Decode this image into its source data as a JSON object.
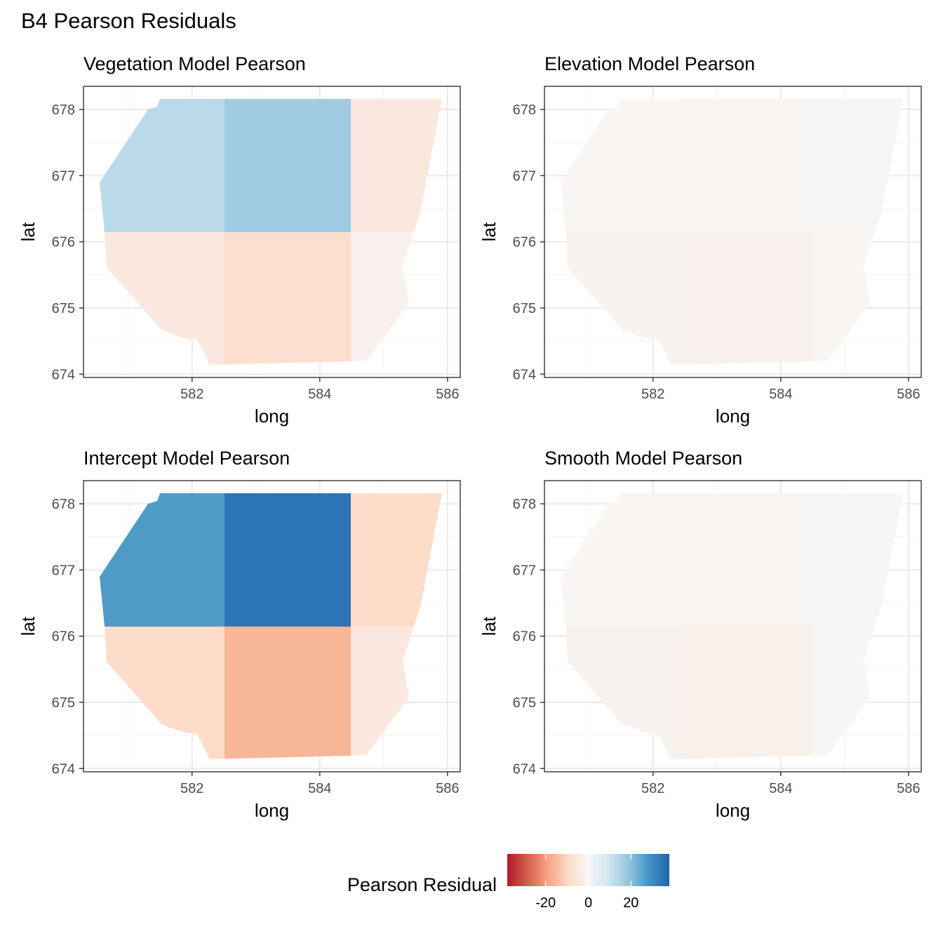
{
  "title": "B4 Pearson Residuals",
  "chart_data": [
    {
      "type": "heatmap",
      "title": "Vegetation Model Pearson",
      "xlabel": "long",
      "ylabel": "lat",
      "x_ticks": [
        582,
        584,
        586
      ],
      "y_ticks": [
        674,
        675,
        676,
        677,
        678
      ],
      "xlim": [
        580.3,
        586.2
      ],
      "ylim": [
        673.95,
        678.35
      ],
      "grid": true,
      "cells": [
        {
          "col": 0,
          "row": 1,
          "value": 13
        },
        {
          "col": 1,
          "row": 1,
          "value": 17
        },
        {
          "col": 2,
          "row": 1,
          "value": -5
        },
        {
          "col": 0,
          "row": 0,
          "value": -5
        },
        {
          "col": 1,
          "row": 0,
          "value": -8
        },
        {
          "col": 2,
          "row": 0,
          "value": -2
        }
      ]
    },
    {
      "type": "heatmap",
      "title": "Elevation Model Pearson",
      "xlabel": "long",
      "ylabel": "lat",
      "x_ticks": [
        582,
        584,
        586
      ],
      "y_ticks": [
        674,
        675,
        676,
        677,
        678
      ],
      "xlim": [
        580.3,
        586.2
      ],
      "ylim": [
        673.95,
        678.35
      ],
      "grid": true,
      "cells": [
        {
          "col": 0,
          "row": 1,
          "value": -0.8
        },
        {
          "col": 1,
          "row": 1,
          "value": -1
        },
        {
          "col": 2,
          "row": 1,
          "value": -0.6
        },
        {
          "col": 0,
          "row": 0,
          "value": -1.5
        },
        {
          "col": 1,
          "row": 0,
          "value": -2
        },
        {
          "col": 2,
          "row": 0,
          "value": -0.8
        }
      ]
    },
    {
      "type": "heatmap",
      "title": "Intercept Model Pearson",
      "xlabel": "long",
      "ylabel": "lat",
      "x_ticks": [
        582,
        584,
        586
      ],
      "y_ticks": [
        674,
        675,
        676,
        677,
        678
      ],
      "xlim": [
        580.3,
        586.2
      ],
      "ylim": [
        673.95,
        678.35
      ],
      "grid": true,
      "cells": [
        {
          "col": 0,
          "row": 1,
          "value": 27
        },
        {
          "col": 1,
          "row": 1,
          "value": 35
        },
        {
          "col": 2,
          "row": 1,
          "value": -9
        },
        {
          "col": 0,
          "row": 0,
          "value": -9
        },
        {
          "col": 1,
          "row": 0,
          "value": -16
        },
        {
          "col": 2,
          "row": 0,
          "value": -5
        }
      ]
    },
    {
      "type": "heatmap",
      "title": "Smooth Model Pearson",
      "xlabel": "long",
      "ylabel": "lat",
      "x_ticks": [
        582,
        584,
        586
      ],
      "y_ticks": [
        674,
        675,
        676,
        677,
        678
      ],
      "xlim": [
        580.3,
        586.2
      ],
      "ylim": [
        673.95,
        678.35
      ],
      "grid": true,
      "cells": [
        {
          "col": 0,
          "row": 1,
          "value": -0.8
        },
        {
          "col": 1,
          "row": 1,
          "value": -1
        },
        {
          "col": 2,
          "row": 1,
          "value": -0.5
        },
        {
          "col": 0,
          "row": 0,
          "value": -1.8
        },
        {
          "col": 1,
          "row": 0,
          "value": -2.5
        },
        {
          "col": 2,
          "row": 0,
          "value": -0.3
        }
      ]
    }
  ],
  "legend": {
    "title": "Pearson Residual",
    "placement": "bottom",
    "ticks": [
      -20,
      0,
      20
    ],
    "range": [
      -38,
      38
    ],
    "colors": [
      "#b2182b",
      "#d6604d",
      "#f4a582",
      "#fddbc7",
      "#f7f7f7",
      "#d1e5f0",
      "#92c5de",
      "#4393c3",
      "#2166ac"
    ]
  }
}
